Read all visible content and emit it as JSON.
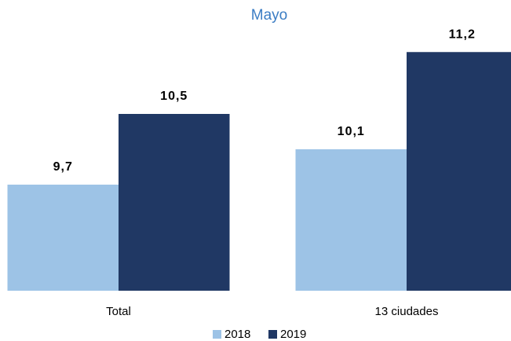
{
  "chart_data": {
    "type": "bar",
    "subtitle": "Mayo",
    "categories": [
      "Total",
      "13 ciudades"
    ],
    "series": [
      {
        "name": "2018",
        "color": "#9dc3e6",
        "values": [
          9.7,
          10.1
        ],
        "value_labels": [
          "9,7",
          "10,1"
        ]
      },
      {
        "name": "2019",
        "color": "#203864",
        "values": [
          10.5,
          11.2
        ],
        "value_labels": [
          "10,5",
          "11,2"
        ]
      }
    ],
    "ylim": [
      8.5,
      11.4
    ]
  }
}
